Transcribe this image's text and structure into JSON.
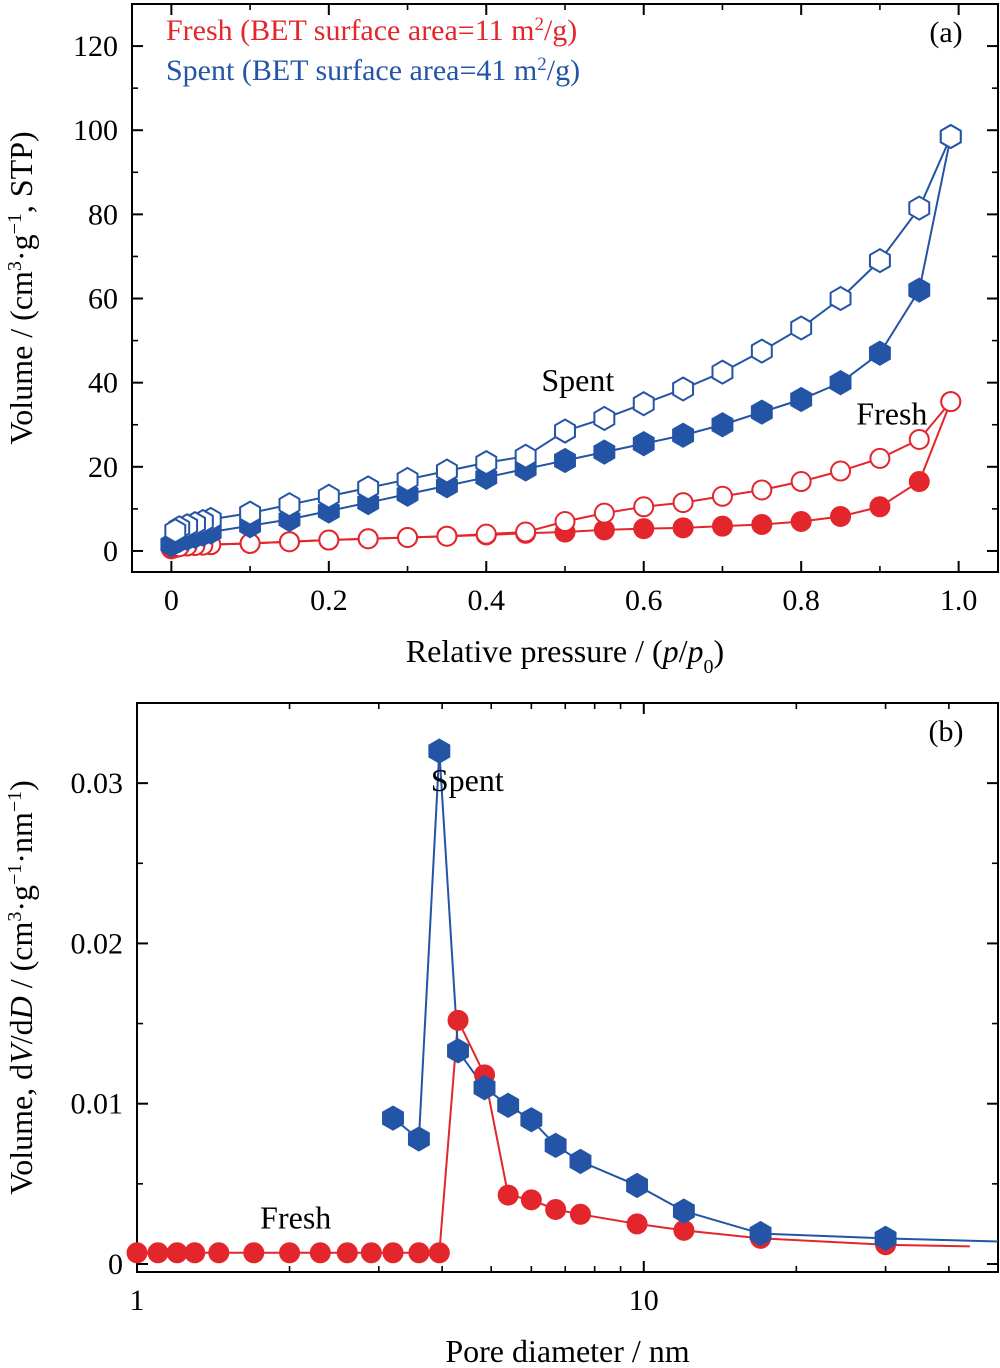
{
  "colors": {
    "fresh": "#e3262b",
    "spent": "#2454a6",
    "axis": "#000000"
  },
  "chart_data": [
    {
      "type": "scatter",
      "panel_label": "(a)",
      "xlabel_parts": [
        "Relative pressure / (",
        "p",
        "/",
        "p",
        "0",
        ")"
      ],
      "ylabel_parts": [
        "Volume / (cm",
        "3",
        "·g",
        "−1",
        ", STP)"
      ],
      "xlim": [
        -0.05,
        1.05
      ],
      "ylim": [
        -5,
        130
      ],
      "x_major_ticks": [
        0,
        0.2,
        0.4,
        0.6,
        0.8,
        1.0
      ],
      "x_tick_labels": [
        "0",
        "0.2",
        "0.4",
        "0.6",
        "0.8",
        "1.0"
      ],
      "x_minor_ticks": [
        0.1,
        0.3,
        0.5,
        0.7,
        0.9
      ],
      "y_major_ticks": [
        0,
        20,
        40,
        60,
        80,
        100,
        120
      ],
      "y_tick_labels": [
        "0",
        "20",
        "40",
        "60",
        "80",
        "100",
        "120"
      ],
      "y_minor_ticks": [
        10,
        30,
        50,
        70,
        90,
        110
      ],
      "legend": [
        {
          "series": "fresh",
          "prefix": "Fresh (BET surface area=11 m",
          "sup": "2",
          "suffix": "/g)"
        },
        {
          "series": "spent",
          "prefix": "Spent (BET surface area=41 m",
          "sup": "2",
          "suffix": "/g)"
        }
      ],
      "annotations": [
        {
          "text": "Spent",
          "x": 0.47,
          "y": 38
        },
        {
          "text": "Fresh",
          "x": 0.87,
          "y": 30
        }
      ],
      "series": [
        {
          "key": "fresh",
          "part": "adsorption",
          "marker": "circle",
          "filled": true,
          "x": [
            0,
            0.005,
            0.01,
            0.02,
            0.03,
            0.04,
            0.05,
            0.1,
            0.15,
            0.2,
            0.25,
            0.3,
            0.35,
            0.4,
            0.45,
            0.5,
            0.55,
            0.6,
            0.65,
            0.7,
            0.75,
            0.8,
            0.85,
            0.9,
            0.95,
            0.99
          ],
          "y": [
            0.5,
            0.8,
            1.0,
            1.2,
            1.3,
            1.4,
            1.5,
            1.8,
            2.2,
            2.6,
            2.9,
            3.2,
            3.5,
            3.8,
            4.2,
            4.5,
            5.0,
            5.3,
            5.5,
            5.9,
            6.3,
            7.0,
            8.2,
            10.5,
            16.5,
            35.5
          ]
        },
        {
          "key": "fresh",
          "part": "desorption",
          "marker": "circle",
          "filled": false,
          "x": [
            0.99,
            0.95,
            0.9,
            0.85,
            0.8,
            0.75,
            0.7,
            0.65,
            0.6,
            0.55,
            0.5,
            0.45,
            0.4,
            0.35,
            0.3,
            0.25,
            0.2,
            0.15,
            0.1,
            0.05,
            0.04,
            0.03,
            0.02,
            0.01
          ],
          "y": [
            35.5,
            26.5,
            22.0,
            19.0,
            16.5,
            14.5,
            13.0,
            11.5,
            10.5,
            9.0,
            7.0,
            4.5,
            4.0,
            3.5,
            3.2,
            2.9,
            2.6,
            2.2,
            1.8,
            1.5,
            1.4,
            1.3,
            1.2,
            1.0
          ]
        },
        {
          "key": "spent",
          "part": "adsorption",
          "marker": "hexagon",
          "filled": true,
          "x": [
            0,
            0.01,
            0.02,
            0.03,
            0.04,
            0.05,
            0.1,
            0.15,
            0.2,
            0.25,
            0.3,
            0.35,
            0.4,
            0.45,
            0.5,
            0.55,
            0.6,
            0.65,
            0.7,
            0.75,
            0.8,
            0.85,
            0.9,
            0.95,
            0.99
          ],
          "y": [
            1.5,
            2.5,
            3.0,
            3.5,
            4.0,
            4.5,
            6.0,
            7.5,
            9.5,
            11.5,
            13.5,
            15.5,
            17.5,
            19.5,
            21.5,
            23.5,
            25.5,
            27.5,
            30.0,
            33.0,
            36.0,
            40.0,
            47.0,
            62.0,
            98.5
          ]
        },
        {
          "key": "spent",
          "part": "desorption",
          "marker": "hexagon",
          "filled": false,
          "x": [
            0.99,
            0.95,
            0.9,
            0.85,
            0.8,
            0.75,
            0.7,
            0.65,
            0.6,
            0.55,
            0.5,
            0.45,
            0.4,
            0.35,
            0.3,
            0.25,
            0.2,
            0.15,
            0.1,
            0.05,
            0.04,
            0.03,
            0.02,
            0.01,
            0.005
          ],
          "y": [
            98.5,
            81.5,
            69.0,
            60.0,
            53.0,
            47.5,
            42.5,
            38.5,
            35.0,
            31.5,
            28.5,
            22.5,
            21.0,
            19.0,
            17.0,
            15.0,
            13.0,
            11.0,
            9.0,
            7.5,
            7.0,
            6.5,
            6.0,
            5.5,
            4.8
          ]
        }
      ]
    },
    {
      "type": "line",
      "panel_label": "(b)",
      "xlabel_parts": [
        "Pore diameter / nm"
      ],
      "ylabel_parts": [
        "Volume, d",
        "V",
        "/d",
        "D",
        " / (cm",
        "3",
        "·g",
        "−1",
        "·nm",
        "−1",
        ")"
      ],
      "xscale": "log",
      "xlim": [
        1,
        50
      ],
      "ylim": [
        -0.0005,
        0.035
      ],
      "x_major_ticks": [
        1,
        10
      ],
      "x_tick_labels": [
        "1",
        "10"
      ],
      "x_minor_ticks": [
        2,
        3,
        4,
        5,
        6,
        7,
        8,
        9,
        20,
        30,
        40
      ],
      "y_major_ticks": [
        0,
        0.01,
        0.02,
        0.03
      ],
      "y_tick_labels": [
        "0",
        "0.01",
        "0.02",
        "0.03"
      ],
      "y_minor_ticks": [
        0.005,
        0.015,
        0.025
      ],
      "annotations": [
        {
          "text": "Spent",
          "x": 3.8,
          "y": 0.0295
        },
        {
          "text": "Fresh",
          "x": 1.75,
          "y": 0.0022
        }
      ],
      "series": [
        {
          "key": "fresh",
          "marker": "circle",
          "filled": true,
          "x": [
            1.0,
            1.1,
            1.2,
            1.3,
            1.45,
            1.7,
            2.0,
            2.3,
            2.6,
            2.9,
            3.2,
            3.6,
            3.95,
            4.3,
            4.85,
            5.4,
            6.0,
            6.7,
            7.5,
            9.7,
            12.0,
            17.0,
            30.0,
            44.0
          ],
          "x_mark_min": 1.0,
          "x_mark_max": 30.0,
          "y": [
            0.0007,
            0.0007,
            0.0007,
            0.0007,
            0.0007,
            0.0007,
            0.0007,
            0.0007,
            0.0007,
            0.0007,
            0.0007,
            0.0007,
            0.0007,
            0.0152,
            0.0118,
            0.0043,
            0.004,
            0.0034,
            0.0031,
            0.0025,
            0.0021,
            0.0016,
            0.0012,
            0.0011
          ]
        },
        {
          "key": "spent",
          "marker": "hexagon",
          "filled": true,
          "x": [
            3.2,
            3.6,
            3.95,
            4.3,
            4.85,
            5.4,
            6.0,
            6.7,
            7.5,
            9.7,
            12.0,
            17.0,
            30.0,
            50.0
          ],
          "x_mark_min": 3.2,
          "x_mark_max": 30.0,
          "y": [
            0.0091,
            0.0078,
            0.032,
            0.0133,
            0.011,
            0.0099,
            0.009,
            0.0074,
            0.0064,
            0.0049,
            0.0033,
            0.0019,
            0.0016,
            0.0014
          ]
        }
      ]
    }
  ]
}
